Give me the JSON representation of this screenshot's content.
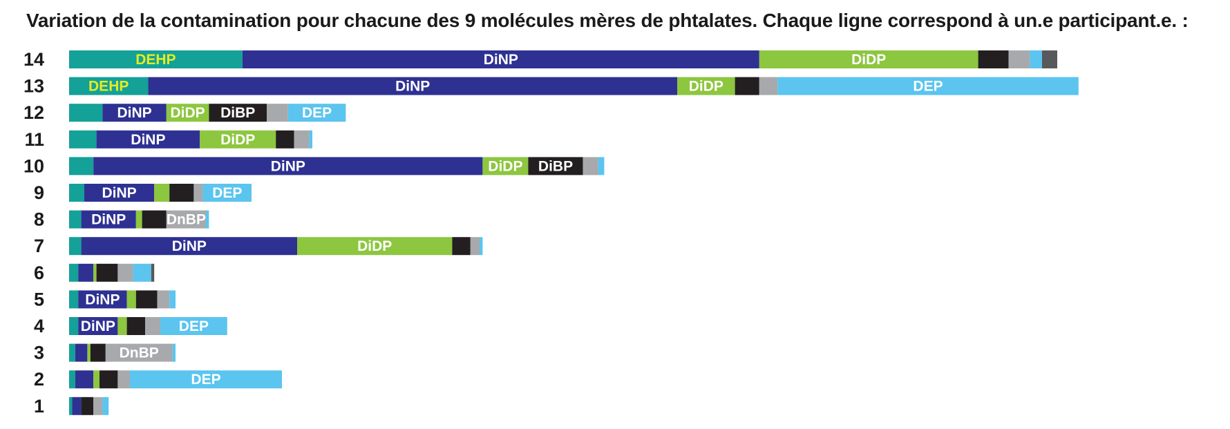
{
  "chart_data": {
    "type": "bar",
    "stacked": true,
    "orientation": "horizontal",
    "title": "Variation de la contamination pour chacune des 9 molécules mères de phtalates. Chaque ligne correspond à un.e participant.e. :",
    "segment_colors": [
      "#13a198",
      "#2e3192",
      "#8dc63f",
      "#231f20",
      "#a7a9ac",
      "#5bc4ef",
      "#58595b"
    ],
    "rows": [
      {
        "participant": "14",
        "segments": [
          {
            "value": 57,
            "color": "#13a198",
            "label": "DEHP"
          },
          {
            "value": 170,
            "color": "#2e3192",
            "label": "DiNP"
          },
          {
            "value": 72,
            "color": "#8dc63f",
            "label": "DiDP"
          },
          {
            "value": 10,
            "color": "#231f20"
          },
          {
            "value": 7,
            "color": "#a7a9ac"
          },
          {
            "value": 4,
            "color": "#5bc4ef"
          },
          {
            "value": 5,
            "color": "#58595b"
          }
        ]
      },
      {
        "participant": "13",
        "segments": [
          {
            "value": 26,
            "color": "#13a198",
            "label": "DEHP"
          },
          {
            "value": 174,
            "color": "#2e3192",
            "label": "DiNP"
          },
          {
            "value": 19,
            "color": "#8dc63f",
            "label": "DiDP"
          },
          {
            "value": 8,
            "color": "#231f20"
          },
          {
            "value": 6,
            "color": "#a7a9ac"
          },
          {
            "value": 99,
            "color": "#5bc4ef",
            "label": "DEP"
          }
        ]
      },
      {
        "participant": "12",
        "segments": [
          {
            "value": 11,
            "color": "#13a198"
          },
          {
            "value": 21,
            "color": "#2e3192",
            "label": "DiNP"
          },
          {
            "value": 14,
            "color": "#8dc63f",
            "label": "DiDP"
          },
          {
            "value": 19,
            "color": "#231f20",
            "label": "DiBP"
          },
          {
            "value": 7,
            "color": "#a7a9ac"
          },
          {
            "value": 19,
            "color": "#5bc4ef",
            "label": "DEP"
          }
        ]
      },
      {
        "participant": "11",
        "segments": [
          {
            "value": 9,
            "color": "#13a198"
          },
          {
            "value": 34,
            "color": "#2e3192",
            "label": "DiNP"
          },
          {
            "value": 25,
            "color": "#8dc63f",
            "label": "DiDP"
          },
          {
            "value": 6,
            "color": "#231f20"
          },
          {
            "value": 5,
            "color": "#a7a9ac"
          },
          {
            "value": 1,
            "color": "#5bc4ef"
          }
        ]
      },
      {
        "participant": "10",
        "segments": [
          {
            "value": 8,
            "color": "#13a198"
          },
          {
            "value": 128,
            "color": "#2e3192",
            "label": "DiNP"
          },
          {
            "value": 15,
            "color": "#8dc63f",
            "label": "DiDP"
          },
          {
            "value": 18,
            "color": "#231f20",
            "label": "DiBP"
          },
          {
            "value": 5,
            "color": "#a7a9ac"
          },
          {
            "value": 2,
            "color": "#5bc4ef"
          }
        ]
      },
      {
        "participant": "9",
        "segments": [
          {
            "value": 5,
            "color": "#13a198"
          },
          {
            "value": 23,
            "color": "#2e3192",
            "label": "DiNP"
          },
          {
            "value": 5,
            "color": "#8dc63f"
          },
          {
            "value": 8,
            "color": "#231f20"
          },
          {
            "value": 3,
            "color": "#a7a9ac"
          },
          {
            "value": 16,
            "color": "#5bc4ef",
            "label": "DEP"
          }
        ]
      },
      {
        "participant": "8",
        "segments": [
          {
            "value": 4,
            "color": "#13a198"
          },
          {
            "value": 18,
            "color": "#2e3192",
            "label": "DiNP"
          },
          {
            "value": 2,
            "color": "#8dc63f"
          },
          {
            "value": 8,
            "color": "#231f20"
          },
          {
            "value": 13,
            "color": "#a7a9ac",
            "label": "DnBP"
          },
          {
            "value": 1,
            "color": "#5bc4ef"
          }
        ]
      },
      {
        "participant": "7",
        "segments": [
          {
            "value": 4,
            "color": "#13a198"
          },
          {
            "value": 71,
            "color": "#2e3192",
            "label": "DiNP"
          },
          {
            "value": 51,
            "color": "#8dc63f",
            "label": "DiDP"
          },
          {
            "value": 6,
            "color": "#231f20"
          },
          {
            "value": 3,
            "color": "#a7a9ac"
          },
          {
            "value": 1,
            "color": "#5bc4ef"
          }
        ]
      },
      {
        "participant": "6",
        "segments": [
          {
            "value": 3,
            "color": "#13a198"
          },
          {
            "value": 5,
            "color": "#2e3192"
          },
          {
            "value": 1,
            "color": "#8dc63f"
          },
          {
            "value": 7,
            "color": "#231f20"
          },
          {
            "value": 5,
            "color": "#a7a9ac"
          },
          {
            "value": 6,
            "color": "#5bc4ef"
          },
          {
            "value": 1,
            "color": "#58595b"
          }
        ]
      },
      {
        "participant": "5",
        "segments": [
          {
            "value": 3,
            "color": "#13a198"
          },
          {
            "value": 16,
            "color": "#2e3192",
            "label": "DiNP"
          },
          {
            "value": 3,
            "color": "#8dc63f"
          },
          {
            "value": 7,
            "color": "#231f20"
          },
          {
            "value": 4,
            "color": "#a7a9ac"
          },
          {
            "value": 2,
            "color": "#5bc4ef"
          }
        ]
      },
      {
        "participant": "4",
        "segments": [
          {
            "value": 3,
            "color": "#13a198"
          },
          {
            "value": 13,
            "color": "#2e3192",
            "label": "DiNP"
          },
          {
            "value": 3,
            "color": "#8dc63f"
          },
          {
            "value": 6,
            "color": "#231f20"
          },
          {
            "value": 5,
            "color": "#a7a9ac"
          },
          {
            "value": 22,
            "color": "#5bc4ef",
            "label": "DEP"
          }
        ]
      },
      {
        "participant": "3",
        "segments": [
          {
            "value": 2,
            "color": "#13a198"
          },
          {
            "value": 4,
            "color": "#2e3192"
          },
          {
            "value": 1,
            "color": "#8dc63f"
          },
          {
            "value": 5,
            "color": "#231f20"
          },
          {
            "value": 22,
            "color": "#a7a9ac",
            "label": "DnBP"
          },
          {
            "value": 1,
            "color": "#5bc4ef"
          }
        ]
      },
      {
        "participant": "2",
        "segments": [
          {
            "value": 2,
            "color": "#13a198"
          },
          {
            "value": 6,
            "color": "#2e3192"
          },
          {
            "value": 2,
            "color": "#8dc63f"
          },
          {
            "value": 6,
            "color": "#231f20"
          },
          {
            "value": 4,
            "color": "#a7a9ac"
          },
          {
            "value": 50,
            "color": "#5bc4ef",
            "label": "DEP"
          }
        ]
      },
      {
        "participant": "1",
        "segments": [
          {
            "value": 1,
            "color": "#13a198"
          },
          {
            "value": 3,
            "color": "#2e3192"
          },
          {
            "value": 4,
            "color": "#231f20"
          },
          {
            "value": 3,
            "color": "#a7a9ac"
          },
          {
            "value": 2,
            "color": "#5bc4ef"
          }
        ]
      }
    ]
  }
}
